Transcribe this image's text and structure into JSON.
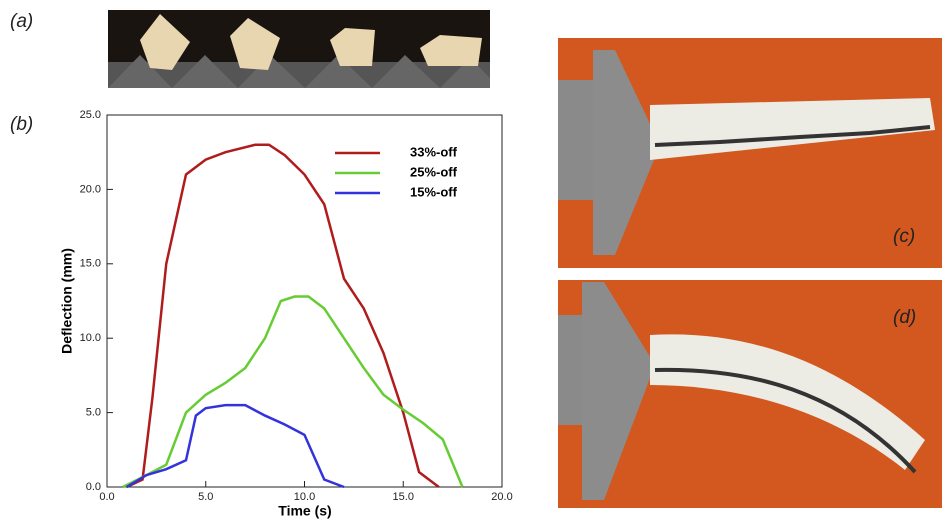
{
  "panel_labels": [
    "(a)",
    "(b)",
    "(c)",
    "(d)"
  ],
  "chart_data": {
    "type": "line",
    "xlabel": "Time (s)",
    "ylabel": "Deflection (mm)",
    "xlim": [
      0,
      20
    ],
    "ylim": [
      0,
      25
    ],
    "xticks": [
      {
        "value": 0,
        "label": "0.0"
      },
      {
        "value": 5,
        "label": "5.0"
      },
      {
        "value": 10,
        "label": "10.0"
      },
      {
        "value": 15,
        "label": "15.0"
      },
      {
        "value": 20,
        "label": "20.0"
      }
    ],
    "yticks": [
      {
        "value": 0,
        "label": "0.0"
      },
      {
        "value": 5,
        "label": "5.0"
      },
      {
        "value": 10,
        "label": "10.0"
      },
      {
        "value": 15,
        "label": "15.0"
      },
      {
        "value": 20,
        "label": "20.0"
      },
      {
        "value": 25,
        "label": "25.0"
      }
    ],
    "series": [
      {
        "name": "33%-off",
        "color": "#b01c1c",
        "x": [
          1.0,
          1.8,
          2.3,
          3.0,
          4.0,
          5.0,
          6.0,
          7.5,
          8.2,
          9.0,
          10.0,
          11.0,
          12.0,
          13.0,
          14.0,
          15.0,
          15.8,
          16.8
        ],
        "values": [
          0,
          0.5,
          6,
          15,
          21,
          22,
          22.5,
          23,
          23,
          22.3,
          21,
          19,
          14,
          12,
          9,
          5,
          1,
          0
        ]
      },
      {
        "name": "25%-off",
        "color": "#66cc33",
        "x": [
          0.8,
          2.0,
          3.0,
          4.0,
          5.0,
          6.0,
          7.0,
          8.0,
          8.8,
          9.5,
          10.2,
          11.0,
          12.0,
          13.0,
          14.0,
          15.0,
          16.0,
          17.0,
          18.0
        ],
        "values": [
          0,
          0.8,
          1.5,
          5,
          6.2,
          7,
          8,
          10,
          12.5,
          12.8,
          12.8,
          12,
          10,
          8,
          6.2,
          5.2,
          4.3,
          3.2,
          0
        ]
      },
      {
        "name": "15%-off",
        "color": "#3333dd",
        "x": [
          1.0,
          2.0,
          3.0,
          4.0,
          4.5,
          5.0,
          6.0,
          7.0,
          8.0,
          9.0,
          10.0,
          11.0,
          12.0
        ],
        "values": [
          0,
          0.8,
          1.2,
          1.8,
          4.8,
          5.3,
          5.5,
          5.5,
          4.8,
          4.2,
          3.5,
          0.5,
          0
        ]
      }
    ]
  }
}
